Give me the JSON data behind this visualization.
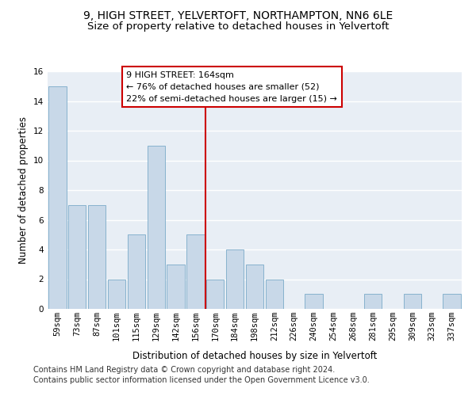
{
  "title1": "9, HIGH STREET, YELVERTOFT, NORTHAMPTON, NN6 6LE",
  "title2": "Size of property relative to detached houses in Yelvertoft",
  "xlabel": "Distribution of detached houses by size in Yelvertoft",
  "ylabel": "Number of detached properties",
  "categories": [
    "59sqm",
    "73sqm",
    "87sqm",
    "101sqm",
    "115sqm",
    "129sqm",
    "142sqm",
    "156sqm",
    "170sqm",
    "184sqm",
    "198sqm",
    "212sqm",
    "226sqm",
    "240sqm",
    "254sqm",
    "268sqm",
    "281sqm",
    "295sqm",
    "309sqm",
    "323sqm",
    "337sqm"
  ],
  "values": [
    15,
    7,
    7,
    2,
    5,
    11,
    3,
    5,
    2,
    4,
    3,
    2,
    0,
    1,
    0,
    0,
    1,
    0,
    1,
    0,
    1
  ],
  "bar_color": "#c8d8e8",
  "bar_edge_color": "#7aaac8",
  "vline_x": 7.5,
  "vline_color": "#cc0000",
  "annotation_box_text": "9 HIGH STREET: 164sqm\n← 76% of detached houses are smaller (52)\n22% of semi-detached houses are larger (15) →",
  "annotation_box_color": "#cc0000",
  "ylim": [
    0,
    16
  ],
  "yticks": [
    0,
    2,
    4,
    6,
    8,
    10,
    12,
    14,
    16
  ],
  "background_color": "#e8eef5",
  "grid_color": "#ffffff",
  "footer1": "Contains HM Land Registry data © Crown copyright and database right 2024.",
  "footer2": "Contains public sector information licensed under the Open Government Licence v3.0.",
  "title1_fontsize": 10,
  "title2_fontsize": 9.5,
  "axis_label_fontsize": 8.5,
  "tick_fontsize": 7.5,
  "annotation_fontsize": 8,
  "footer_fontsize": 7
}
